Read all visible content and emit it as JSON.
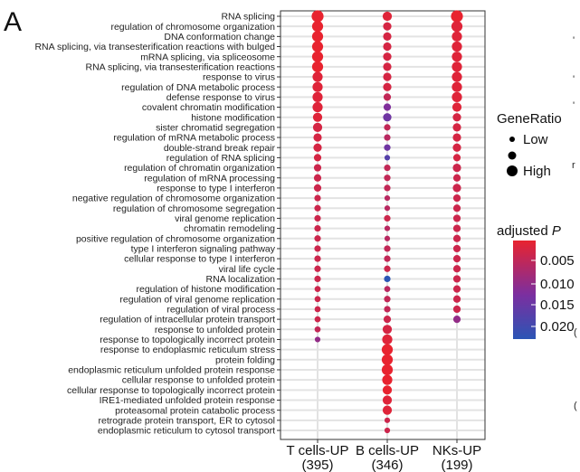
{
  "panel_label": "A",
  "edge_marks": [
    "'",
    "'",
    "'",
    "r",
    "(",
    "("
  ],
  "legend": {
    "size_title": "GeneRatio",
    "size_items": [
      "Low",
      "High"
    ],
    "color_title_main": "adjusted ",
    "color_title_italic": "P",
    "color_ticks": [
      "0.005",
      "0.010",
      "0.015",
      "0.020"
    ],
    "color_low": "#e8232f",
    "color_mid": "#7b2fa0",
    "color_high": "#2b55b5"
  },
  "chart_data": {
    "type": "scatter",
    "subtype": "dot plot (GO enrichment)",
    "title": "",
    "xlabel": "",
    "ylabel": "",
    "grid": true,
    "legend_placement": "right",
    "x": [
      {
        "line1": "T cells-UP",
        "line2": "(395)"
      },
      {
        "line1": "B cells-UP",
        "line2": "(346)"
      },
      {
        "line1": "NKs-UP",
        "line2": "(199)"
      }
    ],
    "terms": [
      "RNA splicing",
      "regulation of chromosome organization",
      "DNA conformation change",
      "RNA splicing, via transesterification reactions with bulged",
      "mRNA splicing, via spliceosome",
      "RNA splicing, via transesterification reactions",
      "response to virus",
      "regulation of DNA metabolic process",
      "defense response to virus",
      "covalent chromatin modification",
      "histone modification",
      "sister chromatid segregation",
      "regulation of mRNA metabolic process",
      "double-strand break repair",
      "regulation of RNA splicing",
      "regulation of chromatin organization",
      "regulation of mRNA processing",
      "response to type I interferon",
      "negative regulation of chromosome organization",
      "regulation of chromosome segregation",
      "viral genome replication",
      "chromatin remodeling",
      "positive regulation of chromosome organization",
      "type I interferon signaling pathway",
      "cellular response to type I interferon",
      "viral life cycle",
      "RNA localization",
      "regulation of histone modification",
      "regulation of viral genome replication",
      "regulation of viral process",
      "regulation of intracellular protein transport",
      "response to unfolded protein",
      "response to topologically incorrect protein",
      "response to endoplasmic reticulum stress",
      "protein folding",
      "endoplasmic reticulum unfolded protein response",
      "cellular response to unfolded protein",
      "cellular response to topologically incorrect protein",
      "IRE1-mediated unfolded protein response",
      "proteasomal protein catabolic process",
      "retrograde protein transport, ER to cytosol",
      "endoplasmic reticulum to cytosol transport"
    ],
    "series": [
      {
        "gene_ratio": [
          10,
          9,
          9,
          9,
          9,
          9,
          8,
          8,
          8,
          8,
          7,
          7,
          6,
          6,
          5,
          5,
          5,
          5,
          4,
          4,
          4,
          4,
          4,
          4,
          4,
          4,
          4,
          3.5,
          3.5,
          3.5,
          3.5,
          3.5,
          3,
          null,
          null,
          null,
          null,
          null,
          null,
          null,
          null,
          null
        ],
        "p_adjust": [
          0.001,
          0.001,
          0.001,
          0.001,
          0.001,
          0.001,
          0.002,
          0.002,
          0.002,
          0.002,
          0.002,
          0.003,
          0.003,
          0.003,
          0.003,
          0.004,
          0.004,
          0.004,
          0.004,
          0.004,
          0.004,
          0.004,
          0.004,
          0.004,
          0.004,
          0.004,
          0.004,
          0.004,
          0.004,
          0.004,
          0.004,
          0.005,
          0.01,
          null,
          null,
          null,
          null,
          null,
          null,
          null,
          null,
          null
        ]
      },
      {
        "gene_ratio": [
          7,
          6,
          6,
          6,
          6,
          6,
          6,
          6,
          5,
          5,
          6,
          4,
          4,
          4,
          3,
          4,
          4,
          4,
          3,
          3,
          4,
          3,
          3,
          4,
          4,
          4,
          4,
          3.5,
          4,
          4,
          5,
          7,
          8,
          9,
          9,
          9,
          8,
          7,
          7,
          7,
          3,
          3
        ],
        "p_adjust": [
          0.002,
          0.003,
          0.003,
          0.003,
          0.003,
          0.003,
          0.003,
          0.003,
          0.005,
          0.012,
          0.014,
          0.005,
          0.006,
          0.014,
          0.017,
          0.005,
          0.005,
          0.005,
          0.006,
          0.006,
          0.004,
          0.006,
          0.006,
          0.005,
          0.005,
          0.004,
          0.022,
          0.006,
          0.005,
          0.005,
          0.004,
          0.003,
          0.002,
          0.001,
          0.001,
          0.001,
          0.001,
          0.001,
          0.002,
          0.002,
          0.004,
          0.004
        ]
      },
      {
        "gene_ratio": [
          10,
          9,
          8,
          8,
          8,
          8,
          8,
          8,
          8,
          7,
          6,
          6,
          6,
          6,
          5,
          6,
          5,
          6,
          5,
          5,
          5,
          5,
          5,
          5,
          5,
          5,
          5,
          5,
          5,
          5,
          5,
          null,
          null,
          null,
          null,
          null,
          null,
          null,
          null,
          null,
          null,
          null
        ],
        "p_adjust": [
          0.001,
          0.002,
          0.002,
          0.002,
          0.002,
          0.002,
          0.002,
          0.002,
          0.002,
          0.002,
          0.003,
          0.003,
          0.003,
          0.003,
          0.003,
          0.004,
          0.004,
          0.004,
          0.004,
          0.004,
          0.004,
          0.004,
          0.004,
          0.004,
          0.004,
          0.004,
          0.004,
          0.004,
          0.004,
          0.004,
          0.01,
          null,
          null,
          null,
          null,
          null,
          null,
          null,
          null,
          null,
          null,
          null
        ]
      }
    ],
    "size_legend": "GeneRatio",
    "color_legend": "adjusted P",
    "color_range": [
      0.001,
      0.022
    ]
  }
}
